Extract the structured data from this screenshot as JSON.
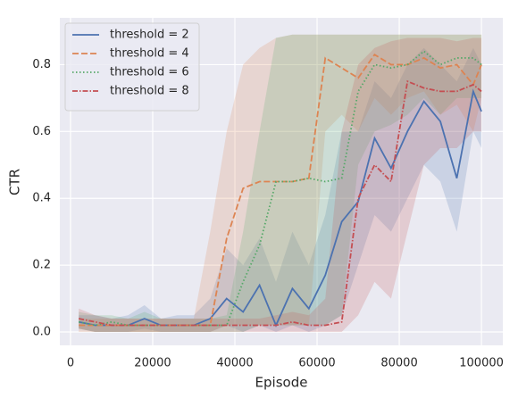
{
  "chart_data": {
    "type": "line",
    "x_label": "Episode",
    "y_label": "CTR",
    "x": [
      2000,
      6000,
      10000,
      14000,
      18000,
      22000,
      26000,
      30000,
      34000,
      38000,
      42000,
      46000,
      50000,
      54000,
      58000,
      62000,
      66000,
      70000,
      74000,
      78000,
      82000,
      86000,
      90000,
      94000,
      98000,
      100000
    ],
    "series": [
      {
        "name": "threshold = 2",
        "color": "#4c72b0",
        "dash": "none",
        "values": [
          0.03,
          0.02,
          0.02,
          0.02,
          0.04,
          0.02,
          0.02,
          0.02,
          0.04,
          0.1,
          0.06,
          0.14,
          0.02,
          0.13,
          0.07,
          0.17,
          0.33,
          0.39,
          0.58,
          0.49,
          0.6,
          0.69,
          0.63,
          0.46,
          0.72,
          0.66
        ],
        "lower": [
          0.01,
          0,
          0,
          0,
          0.01,
          0,
          0,
          0,
          0,
          0.02,
          0,
          0.02,
          0,
          0.02,
          0,
          0.02,
          0.05,
          0.2,
          0.35,
          0.3,
          0.4,
          0.5,
          0.45,
          0.3,
          0.6,
          0.55
        ],
        "upper": [
          0.05,
          0.05,
          0.04,
          0.05,
          0.08,
          0.04,
          0.05,
          0.05,
          0.1,
          0.25,
          0.2,
          0.28,
          0.15,
          0.3,
          0.2,
          0.35,
          0.6,
          0.6,
          0.75,
          0.7,
          0.8,
          0.85,
          0.8,
          0.75,
          0.85,
          0.8
        ]
      },
      {
        "name": "threshold = 4",
        "color": "#dd8452",
        "dash": "7,3",
        "values": [
          0.02,
          0.02,
          0.02,
          0.02,
          0.02,
          0.02,
          0.02,
          0.02,
          0.02,
          0.28,
          0.43,
          0.45,
          0.45,
          0.45,
          0.46,
          0.82,
          0.79,
          0.76,
          0.83,
          0.8,
          0.8,
          0.82,
          0.79,
          0.8,
          0.74,
          0.8
        ],
        "lower": [
          0,
          0,
          0,
          0,
          0,
          0,
          0,
          0,
          0,
          0.02,
          0.02,
          0.02,
          0.02,
          0.02,
          0.02,
          0.6,
          0.65,
          0.6,
          0.7,
          0.65,
          0.7,
          0.72,
          0.65,
          0.68,
          0.6,
          0.7
        ],
        "upper": [
          0.04,
          0.04,
          0.04,
          0.04,
          0.04,
          0.04,
          0.04,
          0.04,
          0.3,
          0.6,
          0.8,
          0.85,
          0.88,
          0.89,
          0.89,
          0.89,
          0.89,
          0.89,
          0.89,
          0.89,
          0.89,
          0.89,
          0.89,
          0.89,
          0.89,
          0.89
        ]
      },
      {
        "name": "threshold = 6",
        "color": "#55a868",
        "dash": "1.5,2.5",
        "values": [
          0.03,
          0.02,
          0.03,
          0.02,
          0.02,
          0.02,
          0.02,
          0.02,
          0.02,
          0.02,
          0.15,
          0.26,
          0.45,
          0.45,
          0.46,
          0.45,
          0.46,
          0.72,
          0.8,
          0.79,
          0.8,
          0.84,
          0.8,
          0.82,
          0.82,
          0.8
        ],
        "lower": [
          0.01,
          0,
          0,
          0,
          0,
          0,
          0,
          0,
          0,
          0,
          0,
          0.02,
          0.02,
          0.02,
          0.02,
          0.02,
          0.05,
          0.5,
          0.6,
          0.62,
          0.65,
          0.7,
          0.65,
          0.7,
          0.7,
          0.7
        ],
        "upper": [
          0.06,
          0.05,
          0.05,
          0.04,
          0.06,
          0.04,
          0.04,
          0.04,
          0.04,
          0.05,
          0.3,
          0.6,
          0.88,
          0.89,
          0.89,
          0.89,
          0.89,
          0.89,
          0.89,
          0.89,
          0.89,
          0.89,
          0.89,
          0.89,
          0.89,
          0.89
        ]
      },
      {
        "name": "threshold = 8",
        "color": "#c44e52",
        "dash": "6,2,1.5,2",
        "values": [
          0.04,
          0.03,
          0.02,
          0.02,
          0.02,
          0.02,
          0.02,
          0.02,
          0.02,
          0.02,
          0.02,
          0.02,
          0.02,
          0.03,
          0.02,
          0.02,
          0.03,
          0.4,
          0.5,
          0.45,
          0.75,
          0.73,
          0.72,
          0.72,
          0.74,
          0.72
        ],
        "lower": [
          0.01,
          0,
          0,
          0,
          0,
          0,
          0,
          0,
          0,
          0,
          0,
          0,
          0,
          0,
          0,
          0,
          0,
          0.05,
          0.15,
          0.1,
          0.3,
          0.5,
          0.55,
          0.55,
          0.6,
          0.6
        ],
        "upper": [
          0.07,
          0.05,
          0.04,
          0.04,
          0.04,
          0.04,
          0.04,
          0.04,
          0.04,
          0.04,
          0.04,
          0.04,
          0.05,
          0.06,
          0.05,
          0.1,
          0.6,
          0.8,
          0.85,
          0.87,
          0.88,
          0.88,
          0.88,
          0.87,
          0.88,
          0.88
        ]
      }
    ],
    "xlim": [
      -2600,
      105200
    ],
    "ylim": [
      -0.04,
      0.94
    ],
    "xticks": [
      0,
      20000,
      40000,
      60000,
      80000,
      100000
    ],
    "yticks": [
      {
        "value": 0,
        "label": "0.0"
      },
      0.2,
      0.4,
      0.6,
      0.8
    ],
    "grid": true,
    "legend": "upper left"
  }
}
